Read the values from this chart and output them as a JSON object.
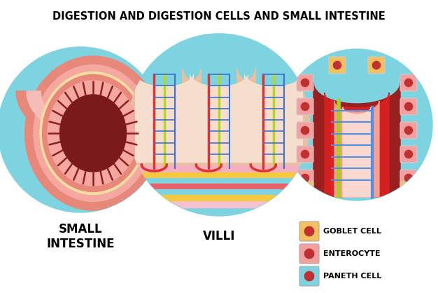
{
  "title": "DIGESTION AND DIGESTION CELLS AND SMALL INTESTINE",
  "title_fontsize": 10.5,
  "title_fontweight": "bold",
  "bg_color": "#ffffff",
  "circle_bg": "#7dd4e0",
  "label1": "SMALL\nINTESTINE",
  "label2": "VILLI",
  "legend_items": [
    {
      "label": "GOBLET CELL",
      "rect_color": "#f5c842",
      "dot_color": "#c0392b"
    },
    {
      "label": "ENTEROCYTE",
      "rect_color": "#f0a0a0",
      "dot_color": "#c0392b"
    },
    {
      "label": "PANETH CELL",
      "rect_color": "#7dd4e0",
      "dot_color": "#c0392b"
    }
  ]
}
